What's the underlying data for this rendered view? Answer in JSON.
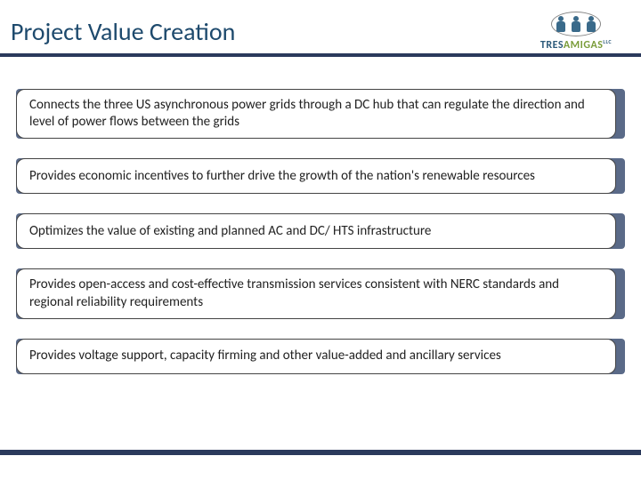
{
  "colors": {
    "title": "#1e4a6d",
    "rule": "#2b3a5c",
    "bullet_bg": "#5a6a88",
    "bullet_border": "#444444",
    "text": "#222222",
    "logo_primary": "#2c5a7a",
    "logo_accent": "#7a9c3a"
  },
  "typography": {
    "title_fontsize": 28,
    "bullet_fontsize": 15,
    "logo_fontsize": 12
  },
  "header": {
    "title": "Project Value Creation",
    "logo": {
      "text_primary": "TRES",
      "text_accent": "AMIGAS",
      "suffix": "LLC"
    }
  },
  "bullets": [
    "Connects the three US asynchronous power grids through a DC hub that can regulate the direction and level of power flows between the grids",
    "Provides economic incentives to further drive the growth of the nation's renewable resources",
    "Optimizes the value of existing and planned AC and DC/ HTS infrastructure",
    "Provides open-access and cost-effective transmission services consistent with NERC standards and regional reliability requirements",
    "Provides voltage support, capacity firming and other value-added and ancillary services"
  ]
}
